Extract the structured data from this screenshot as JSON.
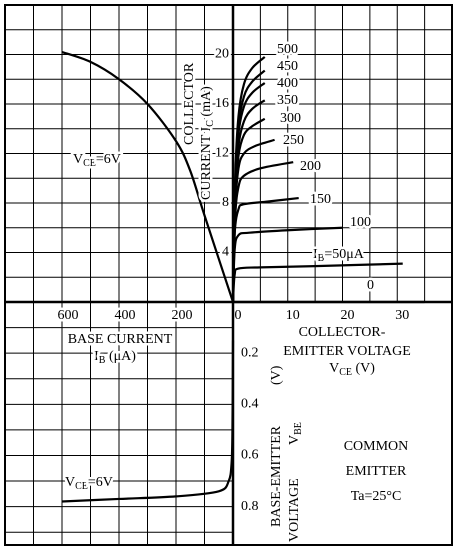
{
  "chart_data": [
    {
      "type": "line",
      "xlabel": [
        [
          "COLLECTOR-"
        ],
        [
          "EMITTER VOLTAGE"
        ],
        [
          "V",
          "CE",
          "  (V)"
        ]
      ],
      "ylabel": [
        [
          "COLLECTOR"
        ],
        [
          "CURRENT  I",
          "C",
          "  (mA)"
        ]
      ],
      "xlim": [
        0,
        40
      ],
      "ylim": [
        0,
        24
      ],
      "xticks": [
        0,
        10,
        20,
        30
      ],
      "yticks": [
        4,
        8,
        12,
        16,
        20
      ],
      "grid": true,
      "minor_grid": true,
      "color": "#000000",
      "series": [
        {
          "name": "500",
          "x": [
            0,
            0.4,
            1,
            2,
            3.5,
            5.8
          ],
          "values": [
            0,
            10,
            15,
            17.6,
            18.9,
            19.8
          ]
        },
        {
          "name": "450",
          "x": [
            0,
            0.4,
            1,
            2,
            3.5,
            5.8
          ],
          "values": [
            0,
            9.5,
            14.2,
            16.6,
            17.8,
            18.7
          ]
        },
        {
          "name": "400",
          "x": [
            0,
            0.4,
            1,
            2,
            3.5,
            5.8
          ],
          "values": [
            0,
            9,
            13.6,
            15.8,
            16.9,
            17.7
          ]
        },
        {
          "name": "350",
          "x": [
            0,
            0.4,
            1,
            2,
            3.5,
            5.8
          ],
          "values": [
            0,
            8.5,
            12.6,
            14.6,
            15.6,
            16.3
          ]
        },
        {
          "name": "300",
          "x": [
            0,
            0.4,
            1,
            2,
            3.5,
            5.8
          ],
          "values": [
            0,
            8,
            11.8,
            13.5,
            14.2,
            14.8
          ]
        },
        {
          "name": "250",
          "x": [
            0,
            0.4,
            1,
            2,
            4,
            7.6
          ],
          "values": [
            0,
            7.5,
            10.8,
            12,
            12.6,
            13.1
          ]
        },
        {
          "name": "200",
          "x": [
            0,
            0.4,
            1,
            2,
            5,
            11
          ],
          "values": [
            0,
            6.8,
            9.3,
            10.2,
            10.8,
            11.3
          ]
        },
        {
          "name": "150",
          "x": [
            0,
            0.3,
            1,
            2,
            6,
            12
          ],
          "values": [
            0,
            5.5,
            7.5,
            7.9,
            8.1,
            8.4
          ]
        },
        {
          "name": "100",
          "x": [
            0,
            0.3,
            1,
            3,
            10,
            20
          ],
          "values": [
            0,
            4.2,
            5.4,
            5.6,
            5.8,
            6.0
          ]
        },
        {
          "name": [
            "I",
            "B",
            "=50μA"
          ],
          "x": [
            0,
            0.3,
            1,
            5,
            15,
            31
          ],
          "values": [
            0,
            2.2,
            2.7,
            2.8,
            2.9,
            3.1
          ]
        },
        {
          "name": "0",
          "x": [
            0,
            35
          ],
          "values": [
            0,
            0
          ]
        }
      ]
    },
    {
      "type": "line",
      "xlabel": [
        [
          "BASE CURRENT"
        ],
        [
          "I",
          "B",
          "  (μA)"
        ]
      ],
      "xlim": [
        0,
        800
      ],
      "ylim": [
        0,
        24
      ],
      "xticks": [
        600,
        400,
        200
      ],
      "grid": true,
      "minor_grid": true,
      "color": "#000000",
      "annotation": [
        "V",
        "CE",
        "=6V"
      ],
      "series": [
        {
          "x": [
            0,
            100,
            150,
            200,
            300,
            400,
            500,
            600
          ],
          "values": [
            0,
            7,
            10.6,
            13,
            16,
            18,
            19.4,
            20.2
          ]
        }
      ]
    },
    {
      "type": "line",
      "ylabel": [
        [
          "BASE-EMITTER"
        ],
        [
          "(V)"
        ],
        [
          "VOLTAGE"
        ],
        [
          "V",
          "BE"
        ]
      ],
      "ylim": [
        0,
        0.95
      ],
      "yticks": [
        0.2,
        0.4,
        0.6,
        0.8
      ],
      "grid": true,
      "minor_grid": true,
      "color": "#000000",
      "annotation": [
        "V",
        "CE",
        "=6V"
      ],
      "note": [
        "COMMON",
        "EMITTER",
        "Ta=25°C"
      ],
      "series": [
        {
          "x": [
            0,
            2,
            5,
            15,
            50,
            200,
            400,
            600
          ],
          "values": [
            0.15,
            0.5,
            0.63,
            0.7,
            0.74,
            0.76,
            0.77,
            0.78
          ]
        }
      ]
    }
  ]
}
